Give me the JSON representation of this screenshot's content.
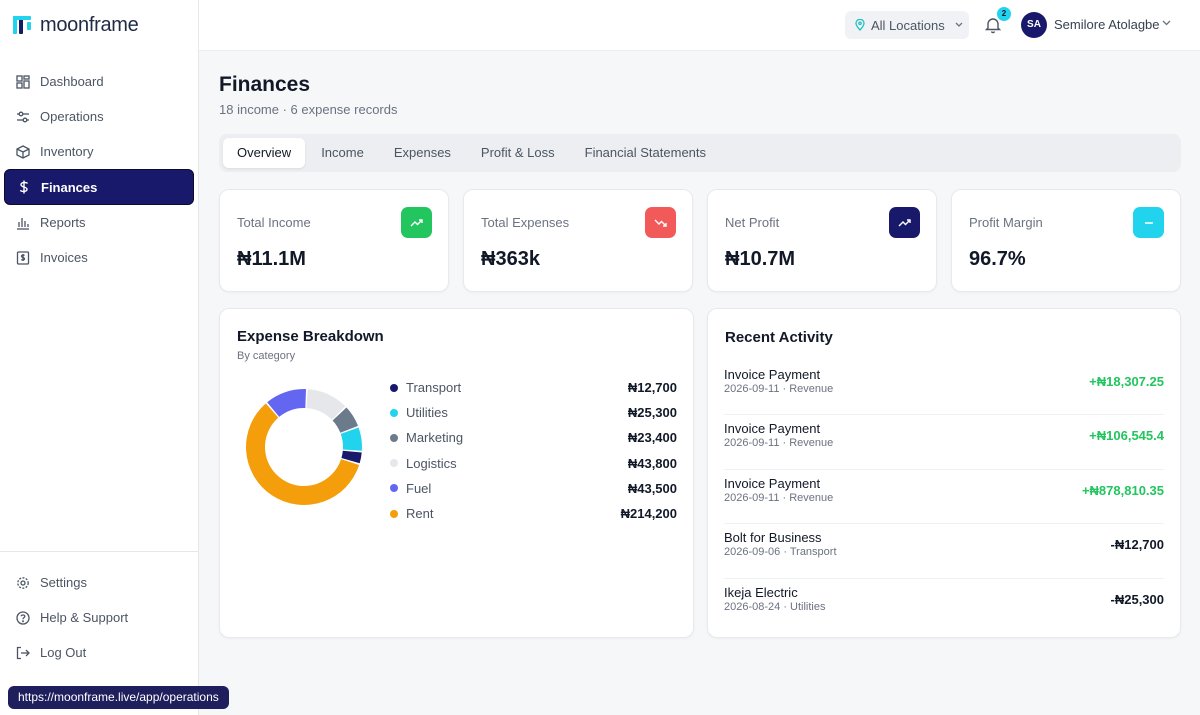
{
  "app": {
    "name": "moonframe"
  },
  "sidebar": {
    "items": [
      {
        "label": "Dashboard"
      },
      {
        "label": "Operations"
      },
      {
        "label": "Inventory"
      },
      {
        "label": "Finances"
      },
      {
        "label": "Reports"
      },
      {
        "label": "Invoices"
      }
    ],
    "bottom_items": [
      {
        "label": "Settings"
      },
      {
        "label": "Help & Support"
      },
      {
        "label": "Log Out"
      }
    ],
    "status_url": "https://moonframe.live/app/operations"
  },
  "topbar": {
    "location": "All Locations",
    "notification_count": "2",
    "user_initials": "SA",
    "user_name": "Semilore Atolagbe"
  },
  "page": {
    "title": "Finances",
    "subtitle": "18 income · 6 expense records"
  },
  "tabs": [
    {
      "label": "Overview",
      "active": true
    },
    {
      "label": "Income"
    },
    {
      "label": "Expenses"
    },
    {
      "label": "Profit & Loss"
    },
    {
      "label": "Financial Statements"
    }
  ],
  "stats": [
    {
      "label": "Total Income",
      "value": "₦11.1M",
      "icon": "trending-up-icon",
      "color": "#22c55e"
    },
    {
      "label": "Total Expenses",
      "value": "₦363k",
      "icon": "trending-down-icon",
      "color": "#f25a5a"
    },
    {
      "label": "Net Profit",
      "value": "₦10.7M",
      "icon": "trending-up-icon",
      "color": "#19196b"
    },
    {
      "label": "Profit Margin",
      "value": "96.7%",
      "icon": "minus-icon",
      "color": "#22d3ee"
    }
  ],
  "expense_breakdown": {
    "title": "Expense Breakdown",
    "subtitle": "By category"
  },
  "chart_data": {
    "type": "pie",
    "categories": [
      "Transport",
      "Utilities",
      "Marketing",
      "Logistics",
      "Fuel",
      "Rent"
    ],
    "labels": [
      "₦12,700",
      "₦25,300",
      "₦23,400",
      "₦43,800",
      "₦43,500",
      "₦214,200"
    ],
    "values": [
      12700,
      25300,
      23400,
      43800,
      43500,
      214200
    ],
    "colors": [
      "#19196b",
      "#22d3ee",
      "#6b7b8c",
      "#e5e7eb",
      "#6366f1",
      "#f59e0b"
    ]
  },
  "recent_activity": {
    "title": "Recent Activity",
    "items": [
      {
        "title": "Invoice Payment",
        "meta": "2026-09-11 · Revenue",
        "amount": "+₦18,307.25",
        "sign": "pos"
      },
      {
        "title": "Invoice Payment",
        "meta": "2026-09-11 · Revenue",
        "amount": "+₦106,545.4",
        "sign": "pos"
      },
      {
        "title": "Invoice Payment",
        "meta": "2026-09-11 · Revenue",
        "amount": "+₦878,810.35",
        "sign": "pos"
      },
      {
        "title": "Bolt for Business",
        "meta": "2026-09-06 · Transport",
        "amount": "-₦12,700",
        "sign": "neg"
      },
      {
        "title": "Ikeja Electric",
        "meta": "2026-08-24 · Utilities",
        "amount": "-₦25,300",
        "sign": "neg"
      }
    ]
  }
}
